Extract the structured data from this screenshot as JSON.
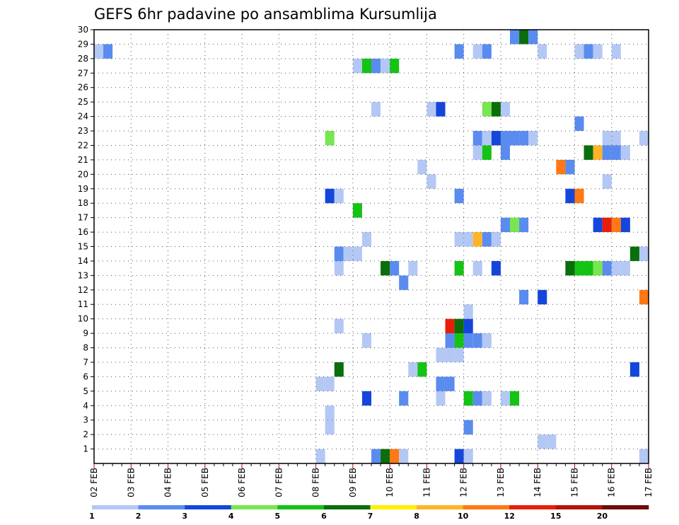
{
  "chart_data": {
    "type": "heatmap",
    "title": "GEFS 6hr padavine po ansamblima Kursumlija",
    "x_ticks": [
      "02 FEB",
      "03 FEB",
      "04 FEB",
      "05 FEB",
      "06 FEB",
      "07 FEB",
      "08 FEB",
      "09 FEB",
      "10 FEB",
      "11 FEB",
      "12 FEB",
      "13 FEB",
      "14 FEB",
      "15 FEB",
      "16 FEB",
      "17 FEB"
    ],
    "y_ticks": [
      "1",
      "2",
      "3",
      "4",
      "5",
      "6",
      "7",
      "8",
      "9",
      "10",
      "11",
      "12",
      "13",
      "14",
      "15",
      "16",
      "17",
      "18",
      "19",
      "20",
      "21",
      "22",
      "23",
      "24",
      "25",
      "26",
      "27",
      "28",
      "29",
      "30"
    ],
    "y_range": [
      0,
      30
    ],
    "time_steps_per_day": 4,
    "grid": true,
    "legend": {
      "placement": "bottom",
      "labels": [
        "1",
        "2",
        "3",
        "4",
        "5",
        "6",
        "7",
        "8",
        "10",
        "12",
        "15",
        "20"
      ],
      "colors": [
        "#b4c8f5",
        "#5a8cf0",
        "#1446dc",
        "#78e650",
        "#14c314",
        "#0a6e0a",
        "#fff000",
        "#ffb428",
        "#ff7814",
        "#e61e0a",
        "#b4140a",
        "#6e0a0a"
      ]
    },
    "cells": [
      {
        "member": 0,
        "step": 24,
        "level": 1
      },
      {
        "member": 0,
        "step": 30,
        "level": 2
      },
      {
        "member": 0,
        "step": 31,
        "level": 6
      },
      {
        "member": 0,
        "step": 32,
        "level": 9
      },
      {
        "member": 0,
        "step": 33,
        "level": 1
      },
      {
        "member": 0,
        "step": 39,
        "level": 3
      },
      {
        "member": 0,
        "step": 40,
        "level": 1
      },
      {
        "member": 0,
        "step": 59,
        "level": 1
      },
      {
        "member": 1,
        "step": 48,
        "level": 1
      },
      {
        "member": 1,
        "step": 49,
        "level": 1
      },
      {
        "member": 2,
        "step": 25,
        "level": 1
      },
      {
        "member": 2,
        "step": 40,
        "level": 2
      },
      {
        "member": 3,
        "step": 25,
        "level": 1
      },
      {
        "member": 4,
        "step": 29,
        "level": 3
      },
      {
        "member": 4,
        "step": 33,
        "level": 2
      },
      {
        "member": 4,
        "step": 37,
        "level": 1
      },
      {
        "member": 4,
        "step": 40,
        "level": 5
      },
      {
        "member": 4,
        "step": 41,
        "level": 2
      },
      {
        "member": 4,
        "step": 42,
        "level": 1
      },
      {
        "member": 4,
        "step": 44,
        "level": 1
      },
      {
        "member": 4,
        "step": 45,
        "level": 5
      },
      {
        "member": 5,
        "step": 24,
        "level": 1
      },
      {
        "member": 5,
        "step": 25,
        "level": 1
      },
      {
        "member": 5,
        "step": 37,
        "level": 2
      },
      {
        "member": 5,
        "step": 38,
        "level": 2
      },
      {
        "member": 6,
        "step": 26,
        "level": 6
      },
      {
        "member": 6,
        "step": 34,
        "level": 1
      },
      {
        "member": 6,
        "step": 35,
        "level": 5
      },
      {
        "member": 6,
        "step": 58,
        "level": 3
      },
      {
        "member": 7,
        "step": 37,
        "level": 1
      },
      {
        "member": 7,
        "step": 38,
        "level": 1
      },
      {
        "member": 7,
        "step": 39,
        "level": 1
      },
      {
        "member": 8,
        "step": 29,
        "level": 1
      },
      {
        "member": 8,
        "step": 38,
        "level": 2
      },
      {
        "member": 8,
        "step": 39,
        "level": 5
      },
      {
        "member": 8,
        "step": 40,
        "level": 2
      },
      {
        "member": 8,
        "step": 41,
        "level": 2
      },
      {
        "member": 8,
        "step": 42,
        "level": 1
      },
      {
        "member": 9,
        "step": 26,
        "level": 1
      },
      {
        "member": 9,
        "step": 38,
        "level": 10
      },
      {
        "member": 9,
        "step": 39,
        "level": 6
      },
      {
        "member": 9,
        "step": 40,
        "level": 3
      },
      {
        "member": 10,
        "step": 40,
        "level": 1
      },
      {
        "member": 11,
        "step": 46,
        "level": 2
      },
      {
        "member": 11,
        "step": 48,
        "level": 3
      },
      {
        "member": 11,
        "step": 59,
        "level": 9
      },
      {
        "member": 12,
        "step": 33,
        "level": 2
      },
      {
        "member": 13,
        "step": 26,
        "level": 1
      },
      {
        "member": 13,
        "step": 31,
        "level": 6
      },
      {
        "member": 13,
        "step": 32,
        "level": 2
      },
      {
        "member": 13,
        "step": 34,
        "level": 1
      },
      {
        "member": 13,
        "step": 39,
        "level": 5
      },
      {
        "member": 13,
        "step": 41,
        "level": 1
      },
      {
        "member": 13,
        "step": 43,
        "level": 3
      },
      {
        "member": 13,
        "step": 51,
        "level": 6
      },
      {
        "member": 13,
        "step": 52,
        "level": 5
      },
      {
        "member": 13,
        "step": 53,
        "level": 5
      },
      {
        "member": 13,
        "step": 54,
        "level": 4
      },
      {
        "member": 13,
        "step": 55,
        "level": 2
      },
      {
        "member": 13,
        "step": 56,
        "level": 1
      },
      {
        "member": 13,
        "step": 57,
        "level": 1
      },
      {
        "member": 14,
        "step": 26,
        "level": 2
      },
      {
        "member": 14,
        "step": 27,
        "level": 1
      },
      {
        "member": 14,
        "step": 28,
        "level": 1
      },
      {
        "member": 14,
        "step": 58,
        "level": 6
      },
      {
        "member": 14,
        "step": 59,
        "level": 1
      },
      {
        "member": 15,
        "step": 29,
        "level": 1
      },
      {
        "member": 15,
        "step": 39,
        "level": 1
      },
      {
        "member": 15,
        "step": 40,
        "level": 1
      },
      {
        "member": 15,
        "step": 41,
        "level": 8
      },
      {
        "member": 15,
        "step": 42,
        "level": 2
      },
      {
        "member": 15,
        "step": 43,
        "level": 1
      },
      {
        "member": 16,
        "step": 44,
        "level": 2
      },
      {
        "member": 16,
        "step": 45,
        "level": 4
      },
      {
        "member": 16,
        "step": 46,
        "level": 2
      },
      {
        "member": 16,
        "step": 54,
        "level": 3
      },
      {
        "member": 16,
        "step": 55,
        "level": 10
      },
      {
        "member": 16,
        "step": 56,
        "level": 9
      },
      {
        "member": 16,
        "step": 57,
        "level": 3
      },
      {
        "member": 17,
        "step": 28,
        "level": 5
      },
      {
        "member": 18,
        "step": 25,
        "level": 3
      },
      {
        "member": 18,
        "step": 26,
        "level": 1
      },
      {
        "member": 18,
        "step": 39,
        "level": 2
      },
      {
        "member": 18,
        "step": 51,
        "level": 3
      },
      {
        "member": 18,
        "step": 52,
        "level": 9
      },
      {
        "member": 19,
        "step": 36,
        "level": 1
      },
      {
        "member": 19,
        "step": 55,
        "level": 1
      },
      {
        "member": 20,
        "step": 35,
        "level": 1
      },
      {
        "member": 20,
        "step": 50,
        "level": 9
      },
      {
        "member": 20,
        "step": 51,
        "level": 2
      },
      {
        "member": 21,
        "step": 41,
        "level": 1
      },
      {
        "member": 21,
        "step": 42,
        "level": 5
      },
      {
        "member": 21,
        "step": 44,
        "level": 2
      },
      {
        "member": 21,
        "step": 53,
        "level": 6
      },
      {
        "member": 21,
        "step": 54,
        "level": 8
      },
      {
        "member": 21,
        "step": 55,
        "level": 2
      },
      {
        "member": 21,
        "step": 56,
        "level": 2
      },
      {
        "member": 21,
        "step": 57,
        "level": 1
      },
      {
        "member": 22,
        "step": 25,
        "level": 4
      },
      {
        "member": 22,
        "step": 41,
        "level": 2
      },
      {
        "member": 22,
        "step": 42,
        "level": 1
      },
      {
        "member": 22,
        "step": 43,
        "level": 3
      },
      {
        "member": 22,
        "step": 44,
        "level": 2
      },
      {
        "member": 22,
        "step": 45,
        "level": 2
      },
      {
        "member": 22,
        "step": 46,
        "level": 2
      },
      {
        "member": 22,
        "step": 47,
        "level": 1
      },
      {
        "member": 22,
        "step": 55,
        "level": 1
      },
      {
        "member": 22,
        "step": 56,
        "level": 1
      },
      {
        "member": 22,
        "step": 59,
        "level": 1
      },
      {
        "member": 23,
        "step": 52,
        "level": 2
      },
      {
        "member": 24,
        "step": 30,
        "level": 1
      },
      {
        "member": 24,
        "step": 36,
        "level": 1
      },
      {
        "member": 24,
        "step": 37,
        "level": 3
      },
      {
        "member": 24,
        "step": 42,
        "level": 4
      },
      {
        "member": 24,
        "step": 43,
        "level": 6
      },
      {
        "member": 24,
        "step": 44,
        "level": 1
      },
      {
        "member": 27,
        "step": 28,
        "level": 1
      },
      {
        "member": 27,
        "step": 29,
        "level": 5
      },
      {
        "member": 27,
        "step": 30,
        "level": 2
      },
      {
        "member": 27,
        "step": 31,
        "level": 1
      },
      {
        "member": 27,
        "step": 32,
        "level": 5
      },
      {
        "member": 28,
        "step": 0,
        "level": 1
      },
      {
        "member": 28,
        "step": 1,
        "level": 2
      },
      {
        "member": 28,
        "step": 39,
        "level": 2
      },
      {
        "member": 28,
        "step": 41,
        "level": 1
      },
      {
        "member": 28,
        "step": 42,
        "level": 2
      },
      {
        "member": 28,
        "step": 48,
        "level": 1
      },
      {
        "member": 28,
        "step": 52,
        "level": 1
      },
      {
        "member": 28,
        "step": 53,
        "level": 2
      },
      {
        "member": 28,
        "step": 54,
        "level": 1
      },
      {
        "member": 28,
        "step": 56,
        "level": 1
      },
      {
        "member": 29,
        "step": 45,
        "level": 2
      },
      {
        "member": 29,
        "step": 46,
        "level": 6
      },
      {
        "member": 29,
        "step": 47,
        "level": 2
      }
    ]
  }
}
